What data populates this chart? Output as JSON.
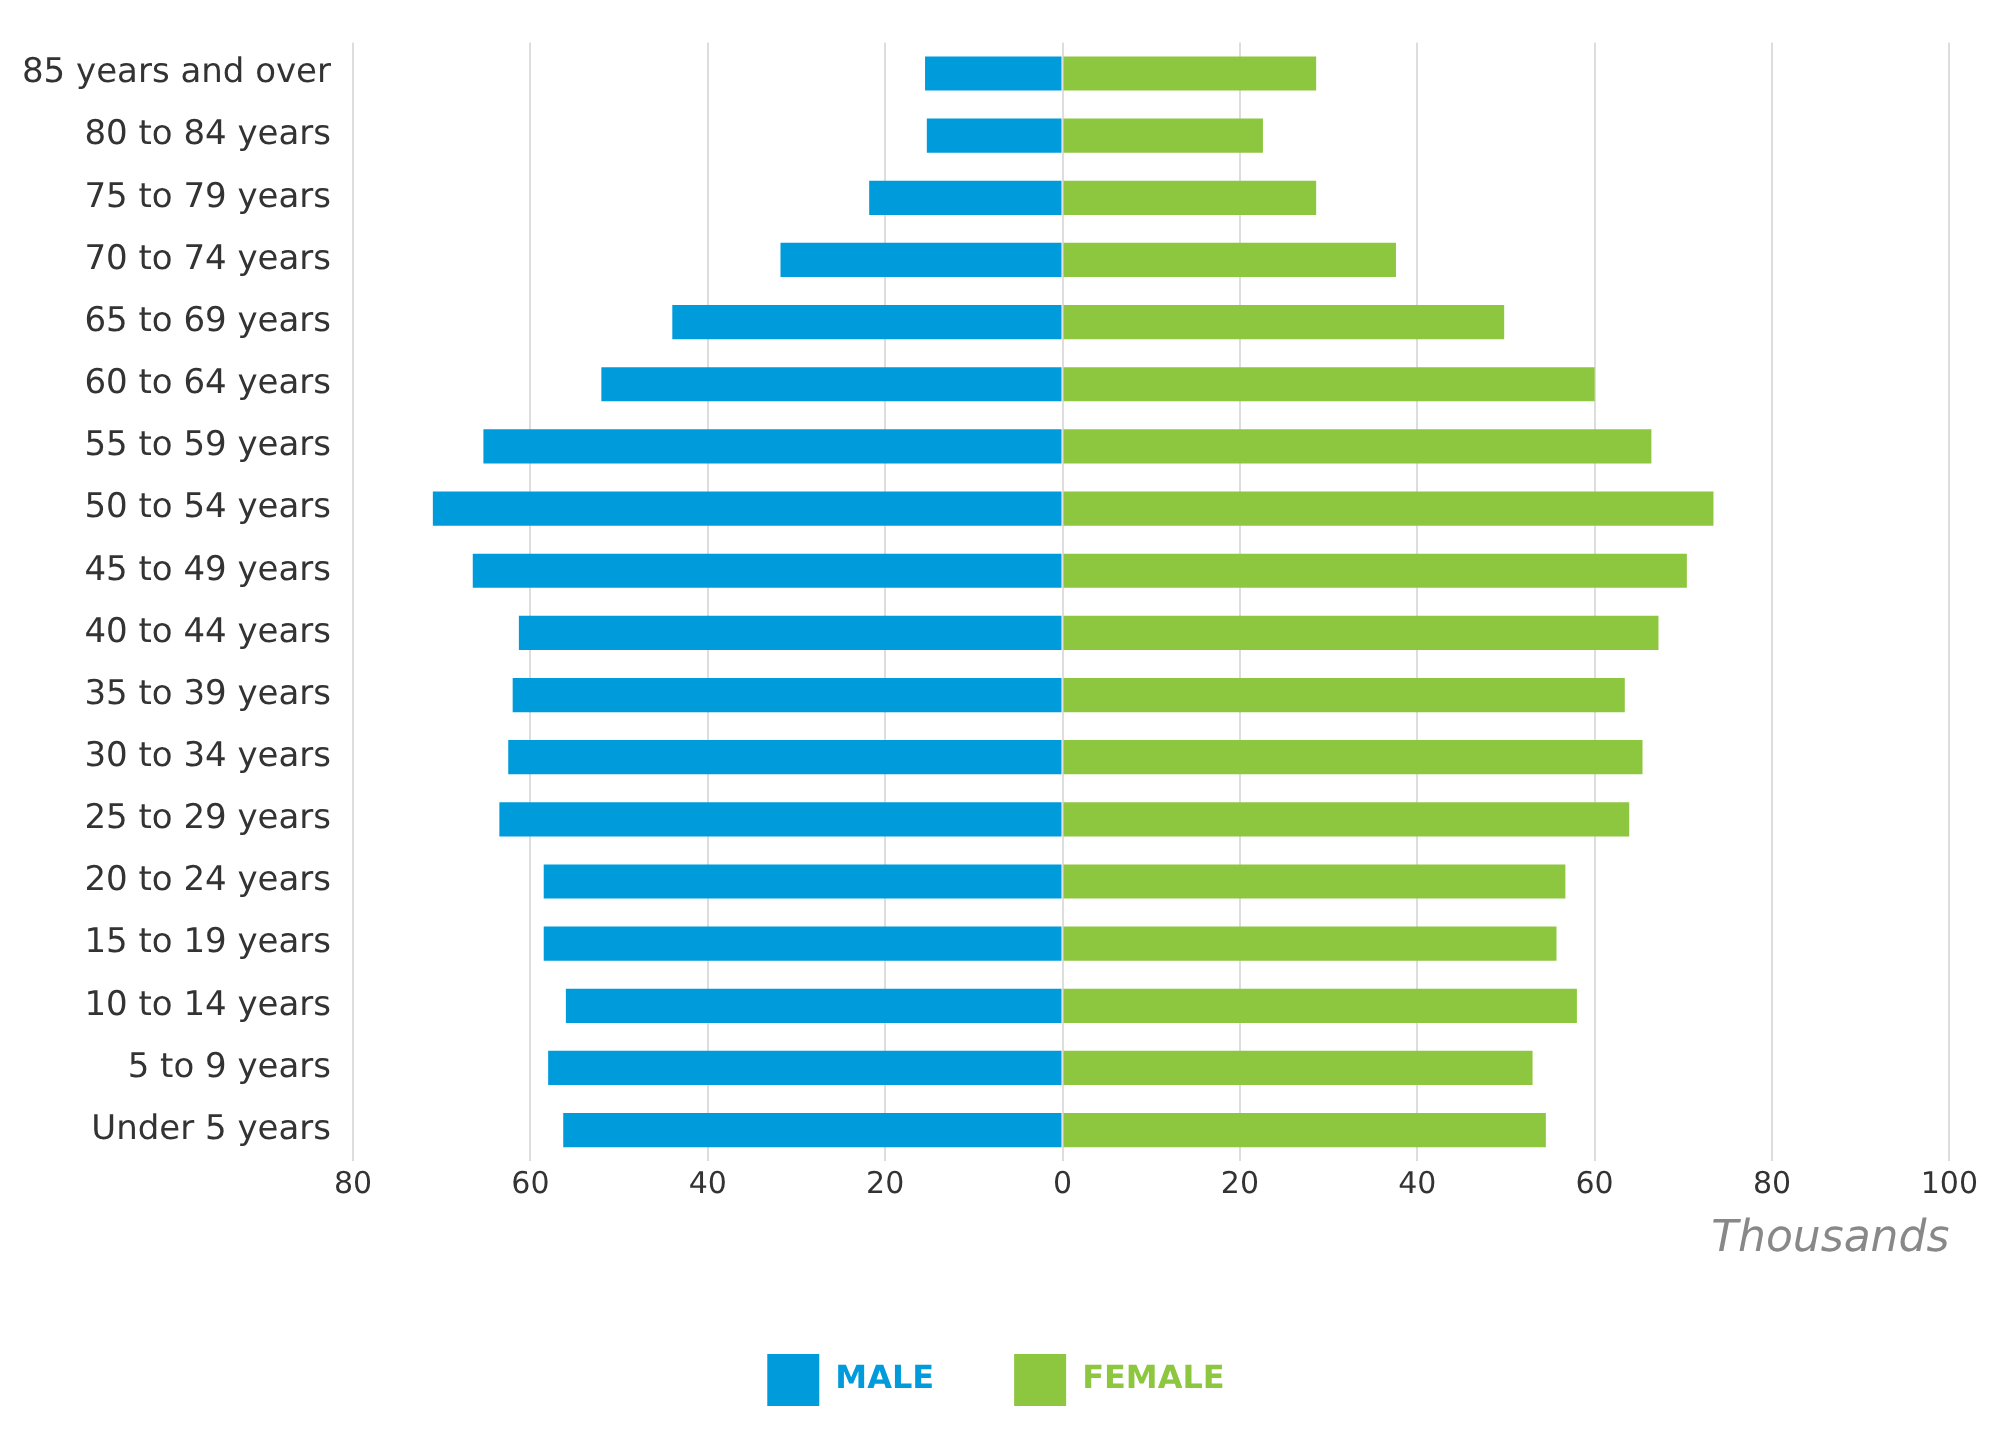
{
  "chart_data": {
    "type": "bar",
    "orientation": "horizontal",
    "stacked": true,
    "xlabel": "Thousands",
    "categories": [
      "85 years and over",
      "80 to 84 years",
      "75 to 79 years",
      "70 to 74 years",
      "65 to 69 years",
      "60 to 64 years",
      "55 to 59 years",
      "50 to 54 years",
      "45 to 49 years",
      "40 to 44 years",
      "35 to 39 years",
      "30 to 34 years",
      "25 to 29 years",
      "20 to 24 years",
      "15 to 19 years",
      "10 to 14 years",
      "5 to 9 years",
      "Under 5 years"
    ],
    "series": [
      {
        "name": "MALE",
        "color": "#009bdb",
        "values": [
          -15.5,
          -15.3,
          -21.8,
          -31.8,
          -44,
          -52,
          -65.3,
          -71,
          -66.5,
          -61.3,
          -62,
          -62.5,
          -63.5,
          -58.5,
          -58.5,
          -56,
          -58,
          -56.3
        ]
      },
      {
        "name": "FEMALE",
        "color": "#8dc63f",
        "values": [
          28.6,
          22.6,
          28.6,
          37.6,
          49.8,
          60,
          66.4,
          73.4,
          70.4,
          67.2,
          63.4,
          65.4,
          63.9,
          56.7,
          55.7,
          58,
          53,
          54.5
        ]
      }
    ],
    "xlim": [
      -80,
      100
    ],
    "xticks": [
      {
        "value": -80,
        "label": "80"
      },
      {
        "value": -60,
        "label": "60"
      },
      {
        "value": -40,
        "label": "40"
      },
      {
        "value": -20,
        "label": "20"
      },
      0,
      20,
      40,
      60,
      80,
      100
    ],
    "grid": "x",
    "legend": "bottom"
  }
}
